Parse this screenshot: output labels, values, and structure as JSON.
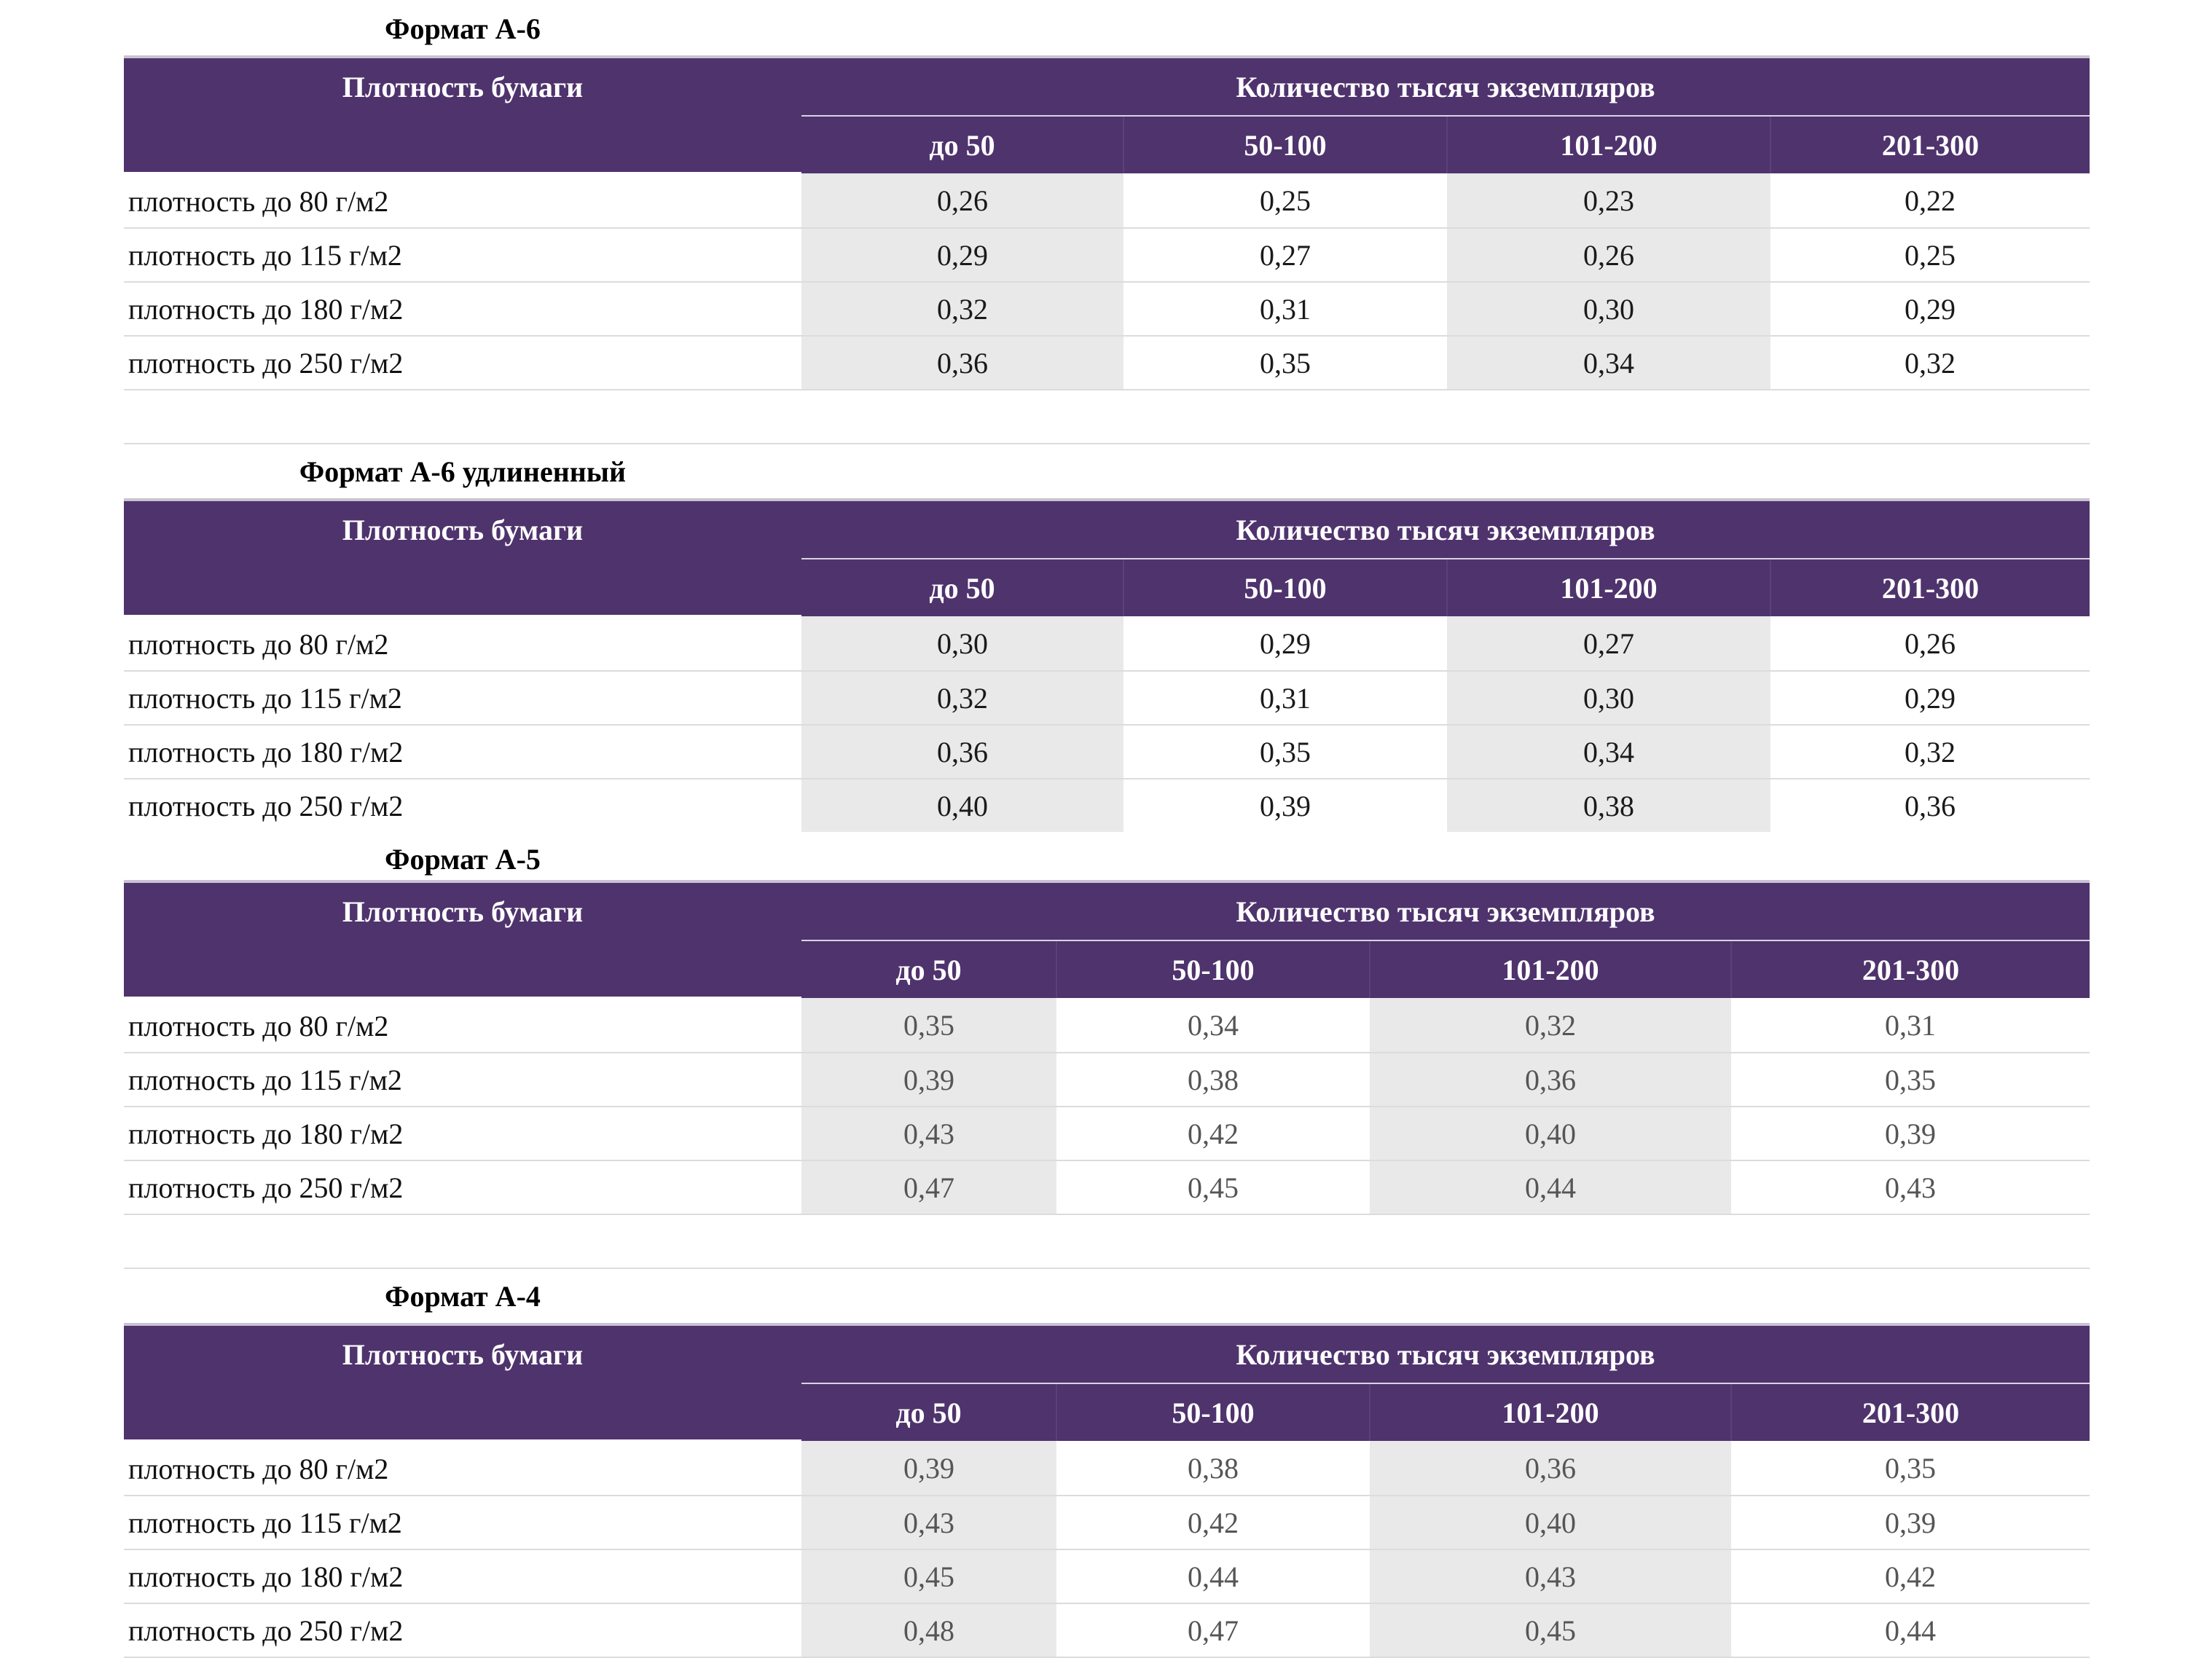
{
  "tables": [
    {
      "title": "Формат А-6",
      "density_header": "Плотность бумаги",
      "quantity_header": "Количество тысяч экземпляров",
      "columns": [
        "до 50",
        "50-100",
        "101-200",
        "201-300"
      ],
      "rows": [
        {
          "label": "плотность до 80 г/м2",
          "values": [
            "0,26",
            "0,25",
            "0,23",
            "0,22"
          ]
        },
        {
          "label": "плотность до 115 г/м2",
          "values": [
            "0,29",
            "0,27",
            "0,26",
            "0,25"
          ]
        },
        {
          "label": "плотность до 180 г/м2",
          "values": [
            "0,32",
            "0,31",
            "0,30",
            "0,29"
          ]
        },
        {
          "label": "плотность до 250 г/м2",
          "values": [
            "0,36",
            "0,35",
            "0,34",
            "0,32"
          ]
        }
      ]
    },
    {
      "title": "Формат А-6 удлиненный",
      "density_header": "Плотность бумаги",
      "quantity_header": "Количество тысяч экземпляров",
      "columns": [
        "до 50",
        "50-100",
        "101-200",
        "201-300"
      ],
      "rows": [
        {
          "label": "плотность до 80 г/м2",
          "values": [
            "0,30",
            "0,29",
            "0,27",
            "0,26"
          ]
        },
        {
          "label": "плотность до 115 г/м2",
          "values": [
            "0,32",
            "0,31",
            "0,30",
            "0,29"
          ]
        },
        {
          "label": "плотность до 180 г/м2",
          "values": [
            "0,36",
            "0,35",
            "0,34",
            "0,32"
          ]
        },
        {
          "label": "плотность до 250 г/м2",
          "values": [
            "0,40",
            "0,39",
            "0,38",
            "0,36"
          ]
        }
      ]
    },
    {
      "title": "Формат А-5",
      "density_header": "Плотность бумаги",
      "quantity_header": "Количество тысяч экземпляров",
      "columns": [
        "до 50",
        "50-100",
        "101-200",
        "201-300"
      ],
      "rows": [
        {
          "label": "плотность до 80 г/м2",
          "values": [
            "0,35",
            "0,34",
            "0,32",
            "0,31"
          ]
        },
        {
          "label": "плотность до 115 г/м2",
          "values": [
            "0,39",
            "0,38",
            "0,36",
            "0,35"
          ]
        },
        {
          "label": "плотность до 180 г/м2",
          "values": [
            "0,43",
            "0,42",
            "0,40",
            "0,39"
          ]
        },
        {
          "label": "плотность до 250 г/м2",
          "values": [
            "0,47",
            "0,45",
            "0,44",
            "0,43"
          ]
        }
      ]
    },
    {
      "title": "Формат А-4",
      "density_header": "Плотность бумаги",
      "quantity_header": "Количество тысяч экземпляров",
      "columns": [
        "до 50",
        "50-100",
        "101-200",
        "201-300"
      ],
      "rows": [
        {
          "label": "плотность до 80 г/м2",
          "values": [
            "0,39",
            "0,38",
            "0,36",
            "0,35"
          ]
        },
        {
          "label": "плотность до 115 г/м2",
          "values": [
            "0,43",
            "0,42",
            "0,40",
            "0,39"
          ]
        },
        {
          "label": "плотность до 180 г/м2",
          "values": [
            "0,45",
            "0,44",
            "0,43",
            "0,42"
          ]
        },
        {
          "label": "плотность до 250 г/м2",
          "values": [
            "0,48",
            "0,47",
            "0,45",
            "0,44"
          ]
        }
      ]
    }
  ],
  "colors": {
    "header_bg": "#4f336d",
    "header_text": "#ffffff",
    "shaded_cell": "#e9e9e9",
    "row_divider": "#dcdcdc"
  }
}
